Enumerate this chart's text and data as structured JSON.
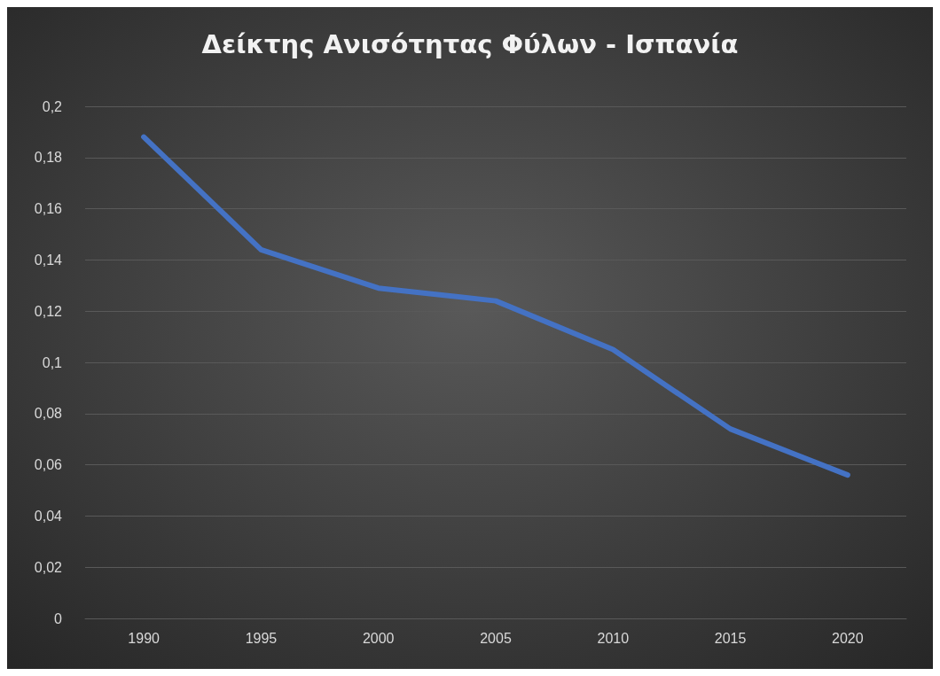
{
  "chart_data": {
    "type": "line",
    "title": "Δείκτης Ανισότητας Φύλων - Ισπανία",
    "categories": [
      "1990",
      "1995",
      "2000",
      "2005",
      "2010",
      "2015",
      "2020"
    ],
    "series": [
      {
        "color": "#4472c4",
        "values": [
          0.188,
          0.144,
          0.129,
          0.124,
          0.105,
          0.074,
          0.056
        ]
      }
    ],
    "ylim": [
      0,
      0.2
    ],
    "yticks": [
      0,
      {
        "value": 0.02,
        "label": "0,02"
      },
      {
        "value": 0.04,
        "label": "0,04"
      },
      {
        "value": 0.06,
        "label": "0,06"
      },
      {
        "value": 0.08,
        "label": "0,08"
      },
      {
        "value": 0.1,
        "label": "0,1"
      },
      {
        "value": 0.12,
        "label": "0,12"
      },
      {
        "value": 0.14,
        "label": "0,14"
      },
      {
        "value": 0.16,
        "label": "0,16"
      },
      {
        "value": 0.18,
        "label": "0,18"
      },
      {
        "value": 0.2,
        "label": "0,2"
      }
    ],
    "grid": "y",
    "marker": "none",
    "line_style": "solid"
  }
}
